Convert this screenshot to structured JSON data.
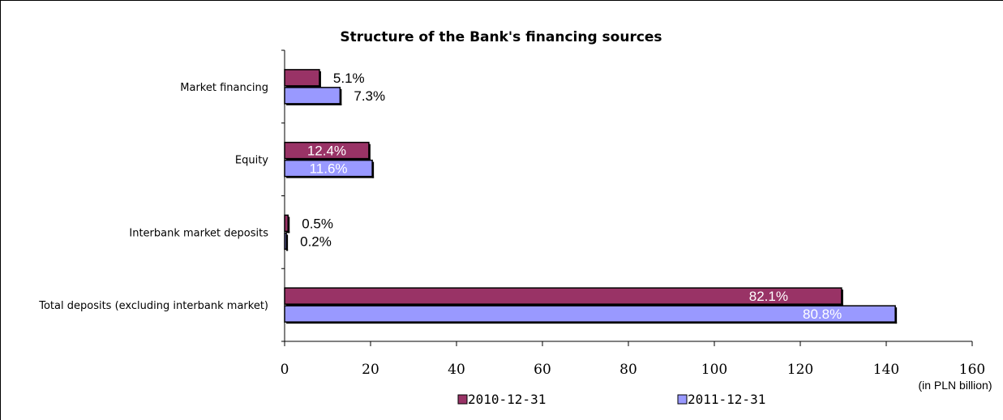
{
  "chart_data": {
    "type": "bar",
    "orientation": "horizontal",
    "title": "Structure of the Bank's financing sources",
    "unit_label": "(in PLN billion)",
    "categories": [
      "Market financing",
      "Equity",
      "Interbank market deposits",
      "Total deposits (excluding interbank market)"
    ],
    "series": [
      {
        "name": "2010-12-31",
        "color": "#993366",
        "values": [
          8.1,
          19.6,
          0.8,
          129.6
        ],
        "labels": [
          "5.1%",
          "12.4%",
          "0.5%",
          "82.1%"
        ],
        "label_inside": [
          false,
          true,
          false,
          true
        ]
      },
      {
        "name": "2011-12-31",
        "color": "#9999ff",
        "values": [
          12.9,
          20.4,
          0.4,
          142.1
        ],
        "labels": [
          "7.3%",
          "11.6%",
          "0.2%",
          "80.8%"
        ],
        "label_inside": [
          false,
          true,
          false,
          true
        ]
      }
    ],
    "x_ticks": [
      "0",
      "20",
      "40",
      "60",
      "80",
      "100",
      "120",
      "140",
      "160"
    ],
    "xlim": [
      0,
      160
    ],
    "grid": false,
    "legend_position": "bottom"
  }
}
